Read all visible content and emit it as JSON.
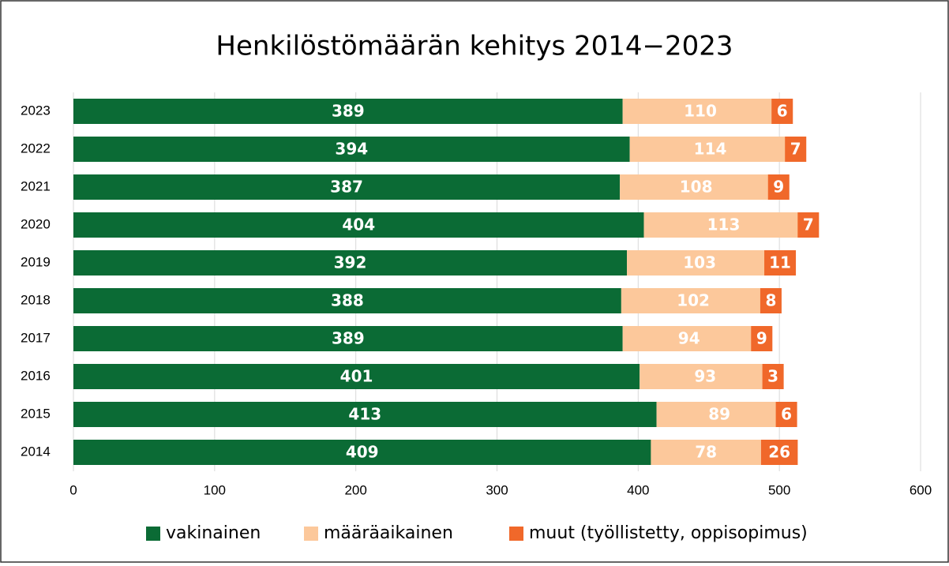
{
  "chart_data": {
    "type": "stacked_bar_horizontal",
    "title": "Henkilöstömäärän kehitys 2014−2023",
    "categories": [
      "2023",
      "2022",
      "2021",
      "2020",
      "2019",
      "2018",
      "2017",
      "2016",
      "2015",
      "2014"
    ],
    "series": [
      {
        "name": "vakinainen",
        "color": "#0b6b35",
        "values": [
          389,
          394,
          387,
          404,
          392,
          388,
          389,
          401,
          413,
          409
        ]
      },
      {
        "name": "määräaikainen",
        "color": "#fcc89b",
        "values": [
          110,
          114,
          108,
          113,
          103,
          102,
          94,
          93,
          89,
          78
        ]
      },
      {
        "name": "muut (työllistetty, oppisopimus)",
        "color": "#f0682a",
        "values": [
          6,
          7,
          9,
          7,
          11,
          8,
          9,
          3,
          6,
          26
        ]
      }
    ],
    "xlim": [
      0,
      600
    ],
    "xticks": [
      0,
      100,
      200,
      300,
      400,
      500,
      600
    ],
    "grid": true,
    "legend": "bottom"
  }
}
